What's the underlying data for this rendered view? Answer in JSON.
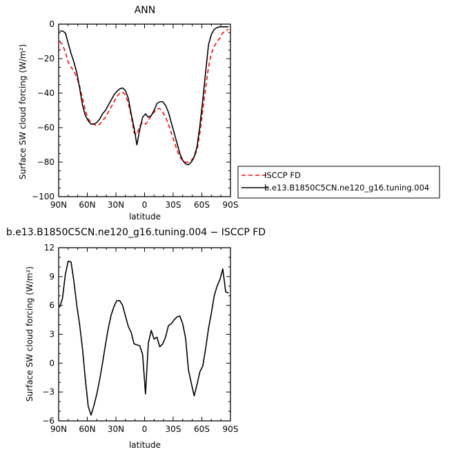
{
  "chart_data": [
    {
      "type": "line",
      "title": "ANN",
      "xlabel": "latitude",
      "ylabel": "Surface SW cloud forcing (W/m²)",
      "xlim": [
        90,
        -90
      ],
      "ylim": [
        -100,
        0
      ],
      "x_ticks": [
        90,
        60,
        30,
        0,
        -30,
        -60,
        -90
      ],
      "x_tick_labels": [
        "90N",
        "60N",
        "30N",
        "0",
        "30S",
        "60S",
        "90S"
      ],
      "y_ticks": [
        0,
        -20,
        -40,
        -60,
        -80,
        -100
      ],
      "y_tick_labels": [
        "0",
        "−20",
        "−40",
        "−60",
        "−80",
        "−100"
      ],
      "legend": "right",
      "series": [
        {
          "name": "ISCCP FD",
          "color": "#ff0000",
          "dash": "dashed",
          "x": [
            89,
            86,
            83,
            80,
            77,
            74,
            71,
            68,
            65,
            62,
            59,
            56,
            53,
            50,
            47,
            44,
            41,
            38,
            35,
            32,
            29,
            26,
            23,
            20,
            17,
            14,
            11,
            8,
            5,
            2,
            -1,
            -4,
            -7,
            -10,
            -13,
            -16,
            -19,
            -22,
            -25,
            -28,
            -31,
            -34,
            -37,
            -40,
            -43,
            -46,
            -49,
            -52,
            -55,
            -58,
            -61,
            -64,
            -67,
            -70,
            -73,
            -76,
            -79,
            -82,
            -85,
            -88
          ],
          "y": [
            -10,
            -12,
            -16,
            -22,
            -25,
            -27,
            -31,
            -36,
            -43,
            -50,
            -55,
            -57,
            -58,
            -59,
            -58,
            -56,
            -54,
            -51,
            -48,
            -45,
            -42,
            -40,
            -39.5,
            -41,
            -46,
            -53,
            -63,
            -64,
            -59,
            -57,
            -58,
            -56,
            -53,
            -51,
            -49,
            -49,
            -51,
            -54,
            -58,
            -63,
            -68,
            -73,
            -77,
            -79,
            -80,
            -80,
            -79,
            -77,
            -73,
            -63,
            -50,
            -37,
            -25,
            -17,
            -13,
            -10,
            -8,
            -5,
            -4,
            -3
          ]
        },
        {
          "name": "b.e13.B1850C5CN.ne120_g16.tuning.004",
          "color": "#000000",
          "dash": "solid",
          "x": [
            89,
            86,
            83,
            80,
            77,
            74,
            71,
            68,
            65,
            62,
            59,
            56,
            53,
            50,
            47,
            44,
            41,
            38,
            35,
            32,
            29,
            26,
            23,
            20,
            17,
            14,
            11,
            8,
            5,
            2,
            -1,
            -4,
            -7,
            -10,
            -13,
            -16,
            -19,
            -22,
            -25,
            -28,
            -31,
            -34,
            -37,
            -40,
            -43,
            -46,
            -49,
            -52,
            -55,
            -58,
            -61,
            -64,
            -67,
            -70,
            -73,
            -76,
            -79,
            -82,
            -85,
            -88
          ],
          "y": [
            -4,
            -4,
            -5,
            -11,
            -17,
            -22,
            -28,
            -37,
            -47,
            -53,
            -56,
            -58,
            -58,
            -57,
            -55,
            -52,
            -50,
            -47,
            -44,
            -41,
            -39,
            -37.5,
            -37,
            -38.5,
            -43,
            -52,
            -60,
            -70,
            -61,
            -54,
            -52,
            -54,
            -53,
            -50,
            -46,
            -45,
            -45,
            -47,
            -51,
            -57,
            -63,
            -69,
            -75,
            -79,
            -81,
            -81.5,
            -80,
            -77,
            -71,
            -59,
            -44,
            -28,
            -12,
            -6,
            -3,
            -2,
            -1.5,
            -1.5,
            -1.5,
            -1.5
          ]
        }
      ]
    },
    {
      "type": "line",
      "title": "b.e13.B1850C5CN.ne120_g16.tuning.004 − ISCCP FD",
      "xlabel": "latitude",
      "ylabel": "Surface SW cloud forcing (W/m²)",
      "xlim": [
        90,
        -90
      ],
      "ylim": [
        -6,
        12
      ],
      "x_ticks": [
        90,
        60,
        30,
        0,
        -30,
        -60,
        -90
      ],
      "x_tick_labels": [
        "90N",
        "60N",
        "30N",
        "0",
        "30S",
        "60S",
        "90S"
      ],
      "y_ticks": [
        12,
        9,
        6,
        3,
        0,
        -3,
        -6
      ],
      "y_tick_labels": [
        "12",
        "9",
        "6",
        "3",
        "0",
        "−3",
        "−6"
      ],
      "series": [
        {
          "color": "#000000",
          "dash": "solid",
          "x": [
            89,
            86,
            83,
            80,
            77,
            74,
            71,
            68,
            65,
            62,
            59,
            56,
            53,
            50,
            47,
            44,
            41,
            38,
            35,
            32,
            29,
            26,
            23,
            20,
            17,
            14,
            11,
            8,
            5,
            2,
            -1,
            -4,
            -7,
            -10,
            -13,
            -16,
            -19,
            -22,
            -25,
            -28,
            -31,
            -34,
            -37,
            -40,
            -43,
            -46,
            -49,
            -52,
            -55,
            -58,
            -61,
            -64,
            -67,
            -70,
            -73,
            -76,
            -79,
            -82,
            -85,
            -88
          ],
          "y": [
            5.8,
            6.7,
            9.2,
            10.6,
            10.5,
            8.5,
            6.0,
            4.0,
            1.5,
            -1.7,
            -4.5,
            -5.4,
            -4.4,
            -3.2,
            -1.7,
            0.0,
            1.9,
            3.6,
            5.0,
            5.9,
            6.5,
            6.5,
            6.0,
            4.9,
            3.8,
            3.2,
            2.0,
            1.9,
            1.8,
            0.9,
            -3.2,
            2.1,
            3.4,
            2.5,
            2.7,
            1.7,
            2.0,
            2.7,
            3.9,
            4.1,
            4.5,
            4.8,
            4.9,
            4.1,
            2.6,
            -0.7,
            -2.1,
            -3.4,
            -2.2,
            -0.9,
            -0.3,
            1.5,
            3.6,
            5.2,
            7.0,
            8.0,
            8.7,
            9.8,
            7.4,
            7.3
          ]
        }
      ]
    }
  ]
}
